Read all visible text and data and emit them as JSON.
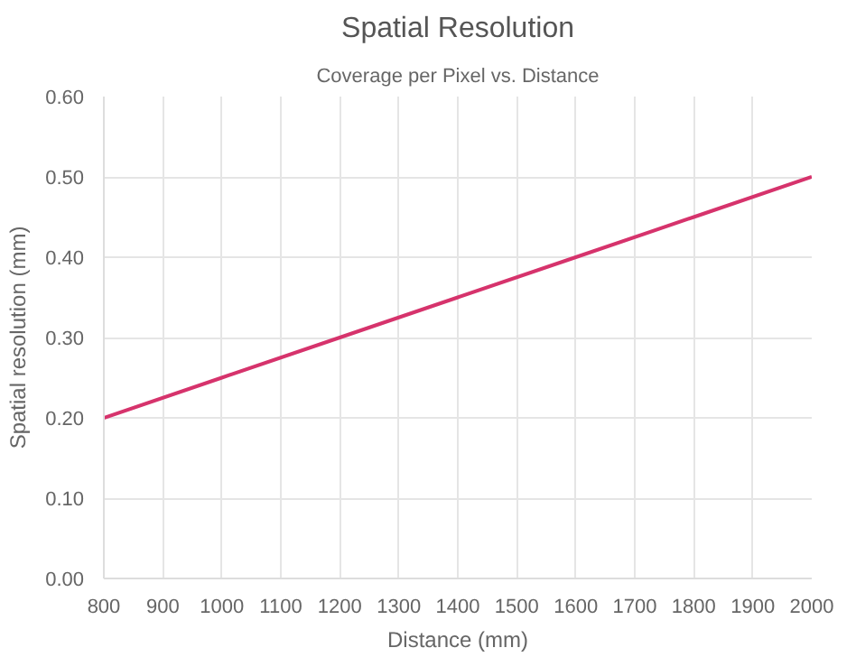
{
  "chart_data": {
    "type": "line",
    "title": "Spatial Resolution",
    "subtitle": "Coverage per Pixel vs. Distance",
    "xlabel": "Distance (mm)",
    "ylabel": "Spatial resolution (mm)",
    "x": [
      800,
      1000,
      1200,
      1400,
      1600,
      1800,
      2000
    ],
    "series": [
      {
        "color": "#d6336c",
        "values": [
          0.2,
          0.25,
          0.3,
          0.35,
          0.4,
          0.45,
          0.5
        ]
      }
    ],
    "xlim": [
      800,
      2000
    ],
    "xticks": [
      800,
      900,
      1000,
      1100,
      1200,
      1300,
      1400,
      1500,
      1600,
      1700,
      1800,
      1900,
      2000
    ],
    "ylim": [
      0,
      0.6
    ],
    "yticks": [
      {
        "value": 0,
        "label": "0.00"
      },
      {
        "value": 0.1,
        "label": "0.10"
      },
      {
        "value": 0.2,
        "label": "0.20"
      },
      {
        "value": 0.3,
        "label": "0.30"
      },
      {
        "value": 0.4,
        "label": "0.40"
      },
      {
        "value": 0.5,
        "label": "0.50"
      },
      {
        "value": 0.6,
        "label": "0.60"
      }
    ],
    "grid": true,
    "marker": "none",
    "line_style": "solid"
  }
}
